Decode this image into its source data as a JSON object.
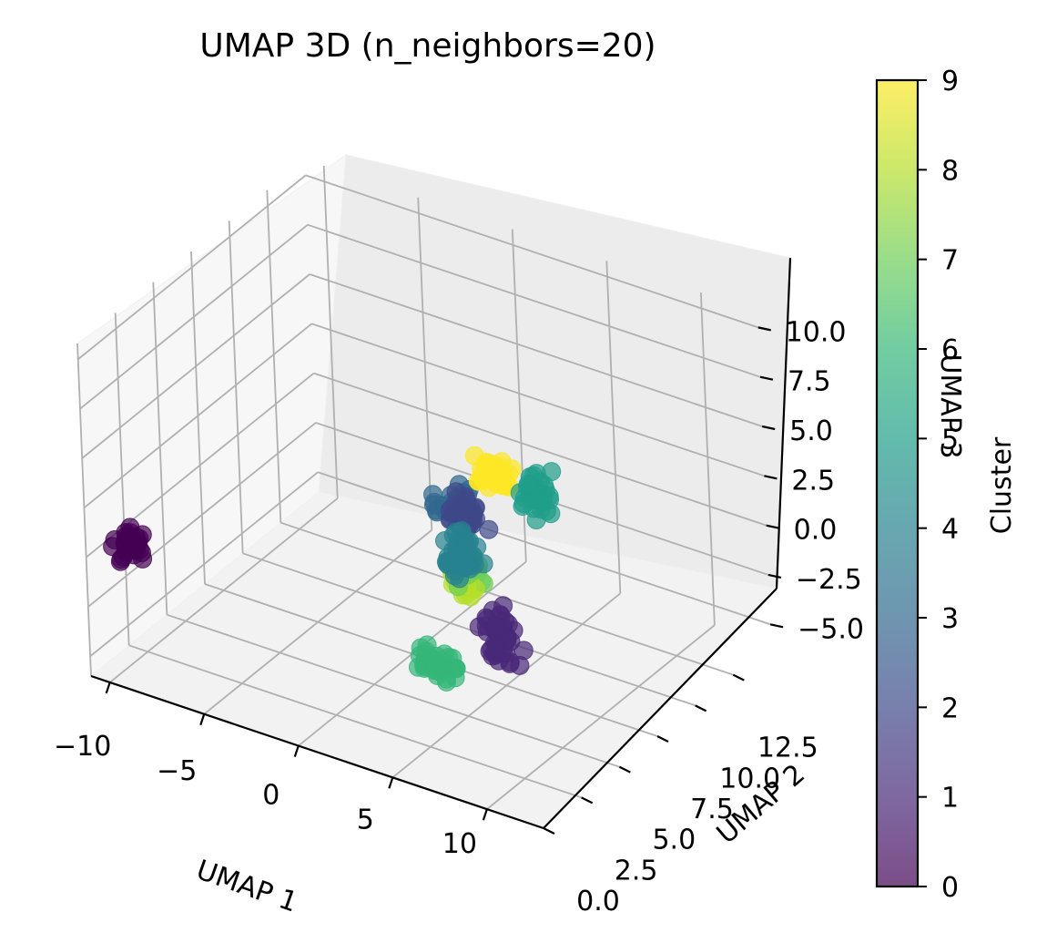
{
  "chart_data": {
    "type": "scatter",
    "projection": "3d",
    "title": "UMAP 3D (n_neighbors=20)",
    "xlabel": "UMAP 1",
    "ylabel": "UMAP 2",
    "zlabel": "UMAP 3",
    "xlim": [
      -11,
      13
    ],
    "ylim": [
      0,
      15
    ],
    "zlim": [
      -6,
      10.8
    ],
    "x_ticks": [
      "−10",
      "−5",
      "0",
      "5",
      "10"
    ],
    "y_ticks": [
      "0.0",
      "2.5",
      "5.0",
      "7.5",
      "10.0",
      "12.5"
    ],
    "z_ticks": [
      "−5.0",
      "−2.5",
      "0.0",
      "2.5",
      "5.0",
      "7.5",
      "10.0"
    ],
    "z_ticks_visible": [
      "−5.0",
      "−2.5",
      "0.0",
      "2.5",
      "5.0",
      "7.5",
      "10.0"
    ],
    "grid": true,
    "colormap": "viridis",
    "marker_alpha": 0.7,
    "colorbar": {
      "label": "Cluster",
      "min": 0,
      "max": 9,
      "ticks": [
        "0",
        "1",
        "2",
        "3",
        "4",
        "5",
        "6",
        "7",
        "8",
        "9"
      ]
    },
    "clusters": [
      {
        "id": 0,
        "color": "#440154",
        "center": [
          -9.6,
          1.2,
          0.3
        ],
        "spread": [
          0.45,
          0.4,
          0.45
        ],
        "points": 40
      },
      {
        "id": 1,
        "color": "#482878",
        "center": [
          5.5,
          6.5,
          -2.6
        ],
        "spread": [
          0.7,
          0.4,
          0.9
        ],
        "points": 40
      },
      {
        "id": 2,
        "color": "#3e4989",
        "center": [
          2.8,
          8.0,
          1.6
        ],
        "spread": [
          0.6,
          0.5,
          0.6
        ],
        "points": 35
      },
      {
        "id": 3,
        "color": "#31688e",
        "center": [
          1.4,
          9.0,
          0.9
        ],
        "spread": [
          0.7,
          0.5,
          0.6
        ],
        "points": 35
      },
      {
        "id": 4,
        "color": "#26828e",
        "center": [
          3.6,
          6.6,
          0.6
        ],
        "spread": [
          0.7,
          0.4,
          0.7
        ],
        "points": 45
      },
      {
        "id": 5,
        "color": "#1f9e89",
        "center": [
          5.2,
          9.4,
          2.4
        ],
        "spread": [
          0.6,
          0.5,
          0.8
        ],
        "points": 35
      },
      {
        "id": 6,
        "color": "#35b779",
        "center": [
          3.4,
          5.0,
          -3.8
        ],
        "spread": [
          0.8,
          0.4,
          0.4
        ],
        "points": 40
      },
      {
        "id": 7,
        "color": "#6ece58",
        "center": [
          3.4,
          7.4,
          -0.8
        ],
        "spread": [
          0.4,
          0.3,
          0.5
        ],
        "points": 20
      },
      {
        "id": 8,
        "color": "#b5de2b",
        "center": [
          3.0,
          7.4,
          -1.2
        ],
        "spread": [
          0.5,
          0.3,
          0.5
        ],
        "points": 30
      },
      {
        "id": 9,
        "color": "#fde725",
        "center": [
          3.2,
          9.4,
          2.9
        ],
        "spread": [
          0.6,
          0.4,
          0.4
        ],
        "points": 30
      }
    ]
  }
}
